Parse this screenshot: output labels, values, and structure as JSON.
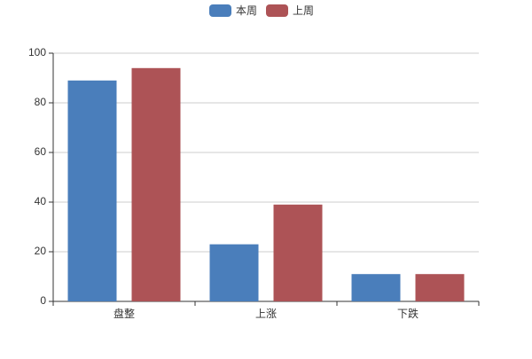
{
  "chart_data": {
    "type": "bar",
    "categories": [
      "盘整",
      "上涨",
      "下跌"
    ],
    "series": [
      {
        "name": "本周",
        "color": "#4a7ebb",
        "values": [
          89,
          23,
          11
        ]
      },
      {
        "name": "上周",
        "color": "#ad5356",
        "values": [
          94,
          39,
          11
        ]
      }
    ],
    "ylim": [
      0,
      100
    ],
    "yticks": [
      0,
      20,
      40,
      60,
      80,
      100
    ],
    "grid": true,
    "legend": "top"
  }
}
